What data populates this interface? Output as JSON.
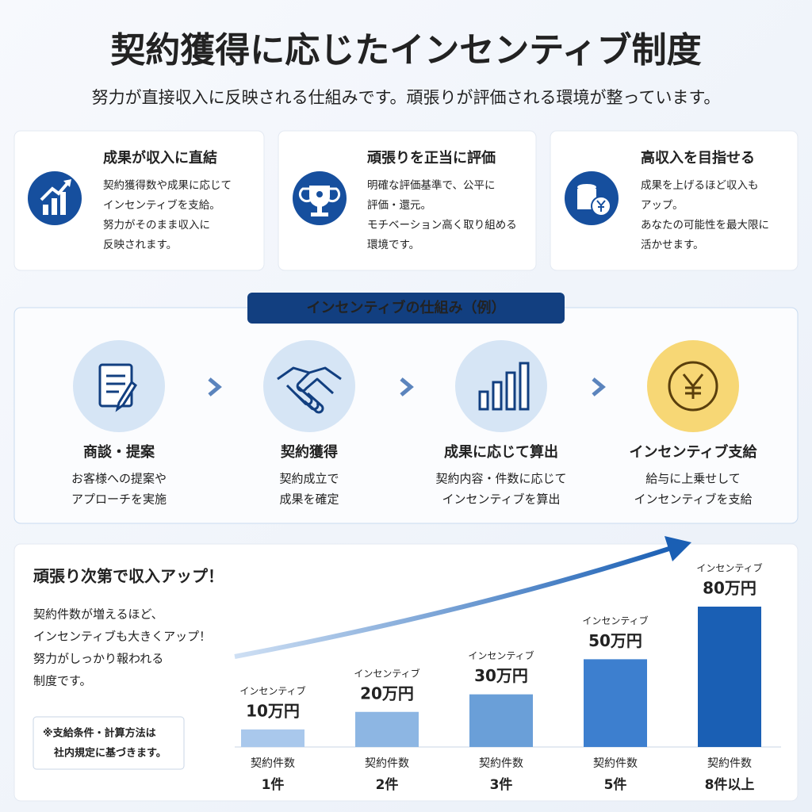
{
  "header": {
    "title": "契約獲得に応じたインセンティブ制度",
    "subtitle": "努力が直接収入に反映される仕組みです。頑張りが評価される環境が整っています。"
  },
  "features": [
    {
      "title": "成果が収入に直結",
      "lines": [
        "契約獲得数や成果に応じて",
        "インセンティブを支給。",
        "努力がそのまま収入に",
        "反映されます。"
      ]
    },
    {
      "title": "頑張りを正当に評価",
      "lines": [
        "明確な評価基準で、公平に",
        "評価・還元。",
        "モチベーション高く取り組める",
        "環境です。"
      ]
    },
    {
      "title": "高収入を目指せる",
      "lines": [
        "成果を上げるほど収入も",
        "アップ。",
        "あなたの可能性を最大限に",
        "活かせます。"
      ]
    }
  ],
  "process": {
    "badge": "インセンティブの仕組み（例）",
    "steps": [
      {
        "title": "商談・提案",
        "lines": [
          "お客様への提案や",
          "アプローチを実施"
        ]
      },
      {
        "title": "契約獲得",
        "lines": [
          "契約成立で",
          "成果を確定"
        ]
      },
      {
        "title": "成果に応じて算出",
        "lines": [
          "契約内容・件数に応じて",
          "インセンティブを算出"
        ]
      },
      {
        "title": "インセンティブ支給",
        "lines": [
          "給与に上乗せして",
          "インセンティブを支給"
        ]
      }
    ]
  },
  "growth": {
    "heading": "頑張り次第で収入アップ！",
    "lines": [
      "契約件数が増えるほど、",
      "インセンティブも大きくアップ！",
      "努力がしっかり報われる",
      "制度です。"
    ],
    "note": [
      "※支給条件・計算方法は",
      "社内規定に基づきます。"
    ]
  },
  "chart_data": {
    "type": "bar",
    "category_caption": "契約件数",
    "value_caption": "インセンティブ",
    "categories": [
      "1件",
      "2件",
      "3件",
      "5件",
      "8件以上"
    ],
    "values": [
      10,
      20,
      30,
      50,
      80
    ],
    "value_labels": [
      "10万円",
      "20万円",
      "30万円",
      "50万円",
      "80万円"
    ],
    "colors": [
      "#a9c8ec",
      "#8db6e3",
      "#6a9fd8",
      "#3d7fcf",
      "#1a5fb4"
    ]
  }
}
